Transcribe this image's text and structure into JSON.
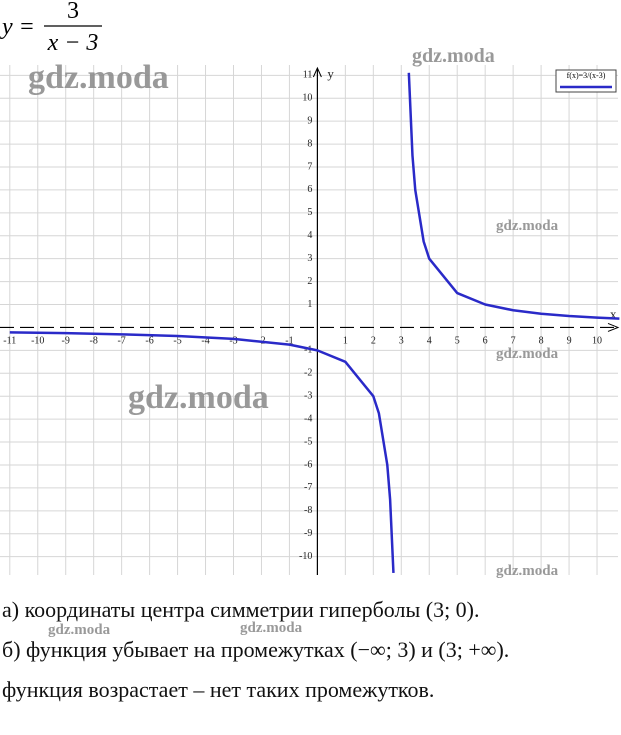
{
  "formula": {
    "lhs": "y =",
    "numerator": "3",
    "denominator": "x − 3"
  },
  "chart_data": {
    "type": "line",
    "x_label": "x",
    "y_label": "y",
    "x": [
      -11,
      -9,
      -7,
      -5,
      -3,
      -1,
      0,
      1,
      2,
      2.2,
      2.5,
      2.6,
      2.72,
      3,
      3.27,
      3.4,
      3.5,
      3.8,
      4,
      5,
      6,
      7,
      8,
      9,
      10,
      10.8
    ],
    "series": [
      {
        "name": "f(x)=3/(x-3)",
        "color": "#2a2ac8",
        "values": [
          -0.214,
          -0.25,
          -0.3,
          -0.375,
          -0.5,
          -0.75,
          -1,
          -1.5,
          -3,
          -3.75,
          -6,
          -7.5,
          -10.71,
          null,
          11.11,
          7.5,
          6,
          3.75,
          3,
          1.5,
          1,
          0.75,
          0.6,
          0.5,
          0.429,
          0.385
        ]
      }
    ],
    "xlim": [
      -11.35,
      10.75
    ],
    "ylim": [
      -10.8,
      11.45
    ],
    "xticks": [
      -11,
      -10,
      -9,
      -8,
      -7,
      -6,
      -5,
      -4,
      -3,
      -2,
      -1,
      1,
      2,
      3,
      4,
      5,
      6,
      7,
      8,
      9,
      10
    ],
    "yticks": [
      -10,
      -9,
      -8,
      -7,
      -6,
      -5,
      -4,
      -3,
      -2,
      -1,
      1,
      2,
      3,
      4,
      5,
      6,
      7,
      8,
      9,
      10,
      11
    ],
    "grid": true,
    "legend": "top-right"
  },
  "answers": [
    "а) координаты центра симметрии гиперболы (3; 0).",
    "б) функция убывает на промежутках (−∞; 3) и (3; +∞).",
    "функция возрастает – нет таких промежутков."
  ],
  "watermarks": [
    "gdz.moda",
    "gdz.moda",
    "gdz.moda",
    "gdz.moda",
    "gdz.moda",
    "gdz.moda",
    "gdz.moda",
    "gdz.moda"
  ]
}
